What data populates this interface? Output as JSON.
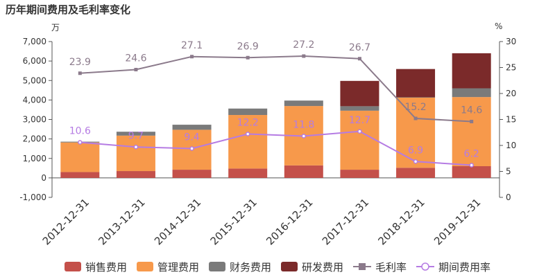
{
  "title": "历年期间费用及毛利率变化",
  "units": {
    "left": "万",
    "right": "%"
  },
  "legend": [
    "销售费用",
    "管理费用",
    "财务费用",
    "研发费用",
    "毛利率",
    "期间费用率"
  ],
  "colors": {
    "sales": "#c4504a",
    "admin": "#f7994b",
    "finance": "#7a7a7a",
    "rd": "#7b2a2a",
    "gross_margin": "#8b7a8b",
    "expense_rate": "#b57be3"
  },
  "chart_data": {
    "type": "bar",
    "stacked": true,
    "categories": [
      "2012-12-31",
      "2013-12-31",
      "2014-12-31",
      "2015-12-31",
      "2016-12-31",
      "2017-12-31",
      "2018-12-31",
      "2019-12-31"
    ],
    "series": [
      {
        "name": "销售费用",
        "axis": "left",
        "values": [
          300,
          350,
          420,
          480,
          640,
          420,
          520,
          600
        ]
      },
      {
        "name": "管理费用",
        "axis": "left",
        "values": [
          1520,
          1820,
          2050,
          2750,
          3050,
          3030,
          3600,
          3550
        ]
      },
      {
        "name": "财务费用",
        "axis": "left",
        "values": [
          40,
          200,
          260,
          330,
          280,
          230,
          20,
          450
        ]
      },
      {
        "name": "研发费用",
        "axis": "left",
        "values": [
          0,
          0,
          0,
          0,
          0,
          1300,
          1450,
          1800
        ]
      },
      {
        "name": "毛利率",
        "type": "line",
        "axis": "right",
        "values": [
          23.9,
          24.6,
          27.1,
          26.9,
          27.2,
          26.7,
          15.2,
          14.6
        ]
      },
      {
        "name": "期间费用率",
        "type": "line",
        "axis": "right",
        "values": [
          10.6,
          9.7,
          9.4,
          12.2,
          11.8,
          12.7,
          6.9,
          6.2
        ]
      }
    ],
    "y_left": {
      "ylim": [
        -1000,
        7000
      ],
      "ticks": [
        "-1,000",
        "0",
        "1,000",
        "2,000",
        "3,000",
        "4,000",
        "5,000",
        "6,000",
        "7,000"
      ]
    },
    "y_right": {
      "ylim": [
        0,
        30
      ],
      "ticks": [
        "0",
        "5",
        "10",
        "15",
        "20",
        "25",
        "30"
      ]
    },
    "legend_position": "bottom",
    "grid": false
  }
}
